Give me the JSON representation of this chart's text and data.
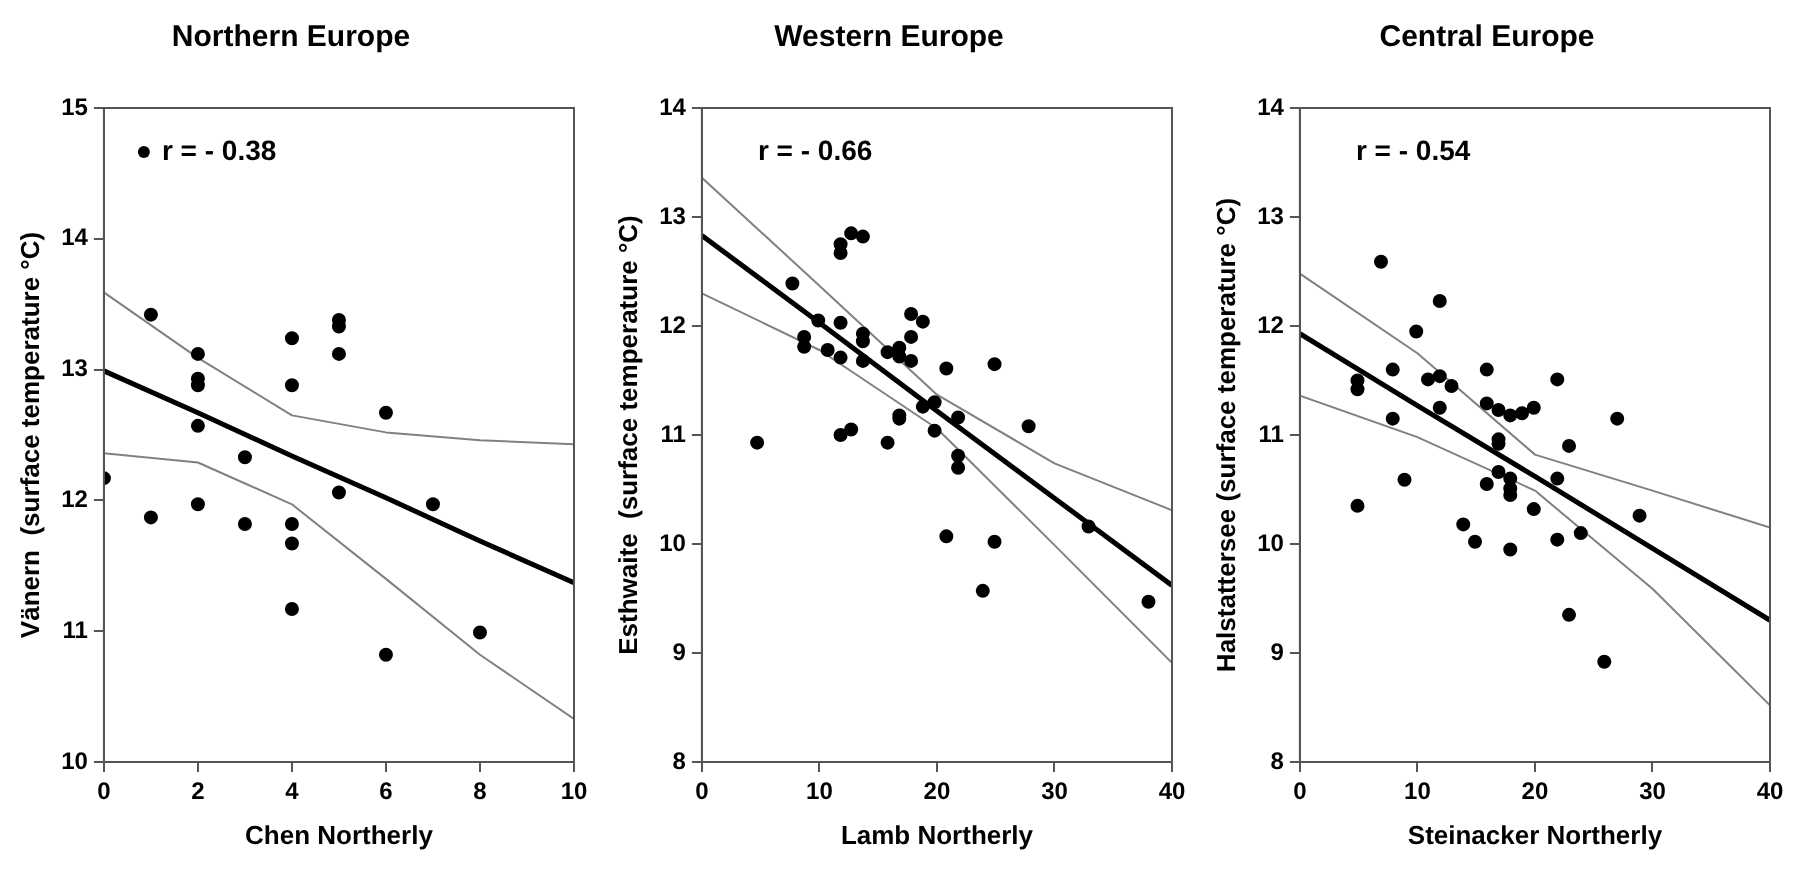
{
  "chart_data": [
    {
      "type": "scatter",
      "title": "Northern Europe",
      "xlabel": "Chen Northerly",
      "ylabel": "Vänern  (surface temperature °C)",
      "xlim": [
        0,
        10
      ],
      "xticks": [
        0,
        2,
        4,
        6,
        8,
        10
      ],
      "ylim": [
        10,
        15
      ],
      "yticks": [
        10,
        11,
        12,
        13,
        14,
        15
      ],
      "grid": false,
      "legend": "top left",
      "marker": "circle",
      "series": [
        {
          "name": "r = - 0.38",
          "color": "#000000",
          "x": [
            0,
            1,
            1,
            2,
            2,
            2,
            2,
            2,
            3,
            3,
            4,
            4,
            4,
            4,
            4,
            5,
            5,
            5,
            5,
            6,
            6,
            7,
            8
          ],
          "values": [
            12.17,
            13.42,
            11.87,
            13.12,
            12.93,
            12.88,
            12.57,
            11.97,
            12.33,
            11.82,
            13.24,
            12.88,
            11.82,
            11.67,
            11.17,
            13.38,
            13.33,
            13.12,
            12.06,
            12.67,
            10.82,
            11.97,
            10.99
          ]
        },
        {
          "type": "line",
          "color": "#000000",
          "marker": "none",
          "x": [
            0,
            2,
            4,
            6,
            8,
            10
          ],
          "values": [
            12.99,
            12.67,
            12.34,
            12.02,
            11.69,
            11.37
          ]
        },
        {
          "type": "line",
          "color": "#808080",
          "marker": "none",
          "x": [
            0,
            2,
            4,
            6,
            8,
            10
          ],
          "values": [
            13.59,
            13.09,
            12.65,
            12.52,
            12.46,
            12.43
          ]
        },
        {
          "type": "line",
          "color": "#808080",
          "marker": "none",
          "x": [
            0,
            2,
            4,
            6,
            8,
            10
          ],
          "values": [
            12.36,
            12.29,
            11.97,
            11.4,
            10.82,
            10.33
          ]
        }
      ]
    },
    {
      "type": "scatter",
      "title": "Western Europe",
      "xlabel": "Lamb Northerly",
      "ylabel": "Esthwaite  (surface temperature °C)",
      "xlim": [
        0,
        40
      ],
      "xticks": [
        0,
        10,
        20,
        30,
        40
      ],
      "ylim": [
        8,
        14
      ],
      "yticks": [
        8,
        9,
        10,
        11,
        12,
        13,
        14
      ],
      "grid": false,
      "marker": "circle",
      "annotations": [
        "r = - 0.66"
      ],
      "series": [
        {
          "color": "#000000",
          "x": [
            4.7,
            7.7,
            8.7,
            8.7,
            9.9,
            10.7,
            11.8,
            11.8,
            11.8,
            11.8,
            11.8,
            12.7,
            12.7,
            13.7,
            13.7,
            13.7,
            13.7,
            15.8,
            15.8,
            16.8,
            16.8,
            16.8,
            16.8,
            17.8,
            17.8,
            17.8,
            18.8,
            18.8,
            19.8,
            19.8,
            20.8,
            20.8,
            21.8,
            21.8,
            21.8,
            23.9,
            24.9,
            24.9,
            27.8,
            32.9,
            38
          ],
          "values": [
            10.93,
            12.39,
            11.9,
            11.81,
            12.05,
            11.78,
            12.75,
            12.67,
            12.03,
            11.71,
            11,
            12.85,
            11.05,
            12.82,
            11.93,
            11.86,
            11.68,
            11.76,
            10.93,
            11.8,
            11.72,
            11.18,
            11.15,
            12.11,
            11.9,
            11.68,
            12.04,
            11.26,
            11.3,
            11.04,
            11.61,
            10.07,
            11.16,
            10.81,
            10.7,
            9.57,
            11.65,
            10.02,
            11.08,
            10.16,
            9.47
          ]
        },
        {
          "type": "line",
          "color": "#000000",
          "marker": "none",
          "x": [
            0,
            10,
            20,
            30,
            40
          ],
          "values": [
            12.83,
            12.03,
            11.22,
            10.42,
            9.62
          ]
        },
        {
          "type": "line",
          "color": "#808080",
          "marker": "none",
          "x": [
            0,
            10,
            20,
            30,
            40
          ],
          "values": [
            13.36,
            12.37,
            11.37,
            10.74,
            10.31
          ]
        },
        {
          "type": "line",
          "color": "#808080",
          "marker": "none",
          "x": [
            0,
            10,
            20,
            30,
            40
          ],
          "values": [
            12.3,
            11.78,
            11.06,
            9.99,
            8.91
          ]
        }
      ]
    },
    {
      "type": "scatter",
      "title": "Central Europe",
      "xlabel": "Steinacker Northerly",
      "ylabel": "Halstattersee (surface temperature °C)",
      "xlim": [
        0,
        40
      ],
      "xticks": [
        0,
        10,
        20,
        30,
        40
      ],
      "ylim": [
        8,
        14
      ],
      "yticks": [
        8,
        9,
        10,
        11,
        12,
        13,
        14
      ],
      "grid": false,
      "marker": "circle",
      "annotations": [
        "r = - 0.54"
      ],
      "series": [
        {
          "color": "#000000",
          "x": [
            4.9,
            4.9,
            4.9,
            6.9,
            7.9,
            7.9,
            8.9,
            9.9,
            10.9,
            11.9,
            11.9,
            11.9,
            12.9,
            13.9,
            14.9,
            15.9,
            15.9,
            15.9,
            16.9,
            16.9,
            16.9,
            16.9,
            17.9,
            17.9,
            17.9,
            17.9,
            17.9,
            18.9,
            19.9,
            19.9,
            21.9,
            21.9,
            21.9,
            22.9,
            22.9,
            23.9,
            25.9,
            27,
            28.9
          ],
          "values": [
            11.5,
            11.42,
            10.35,
            12.59,
            11.6,
            11.15,
            10.59,
            11.95,
            11.51,
            12.23,
            11.54,
            11.25,
            11.45,
            10.18,
            10.02,
            11.6,
            11.29,
            10.55,
            11.23,
            10.96,
            10.92,
            10.66,
            11.18,
            10.6,
            10.51,
            10.45,
            9.95,
            11.2,
            11.25,
            10.32,
            11.51,
            10.6,
            10.04,
            10.9,
            9.35,
            10.1,
            8.92,
            11.15,
            10.26
          ]
        },
        {
          "type": "line",
          "color": "#000000",
          "marker": "none",
          "x": [
            0,
            10,
            20,
            30,
            40
          ],
          "values": [
            11.93,
            11.27,
            10.62,
            9.96,
            9.3
          ]
        },
        {
          "type": "line",
          "color": "#808080",
          "marker": "none",
          "x": [
            0,
            10,
            20,
            30,
            40
          ],
          "values": [
            12.48,
            11.75,
            10.82,
            10.49,
            10.15
          ]
        },
        {
          "type": "line",
          "color": "#808080",
          "marker": "none",
          "x": [
            0,
            10,
            20,
            30,
            40
          ],
          "values": [
            11.36,
            10.98,
            10.49,
            9.59,
            8.52
          ]
        }
      ]
    }
  ]
}
